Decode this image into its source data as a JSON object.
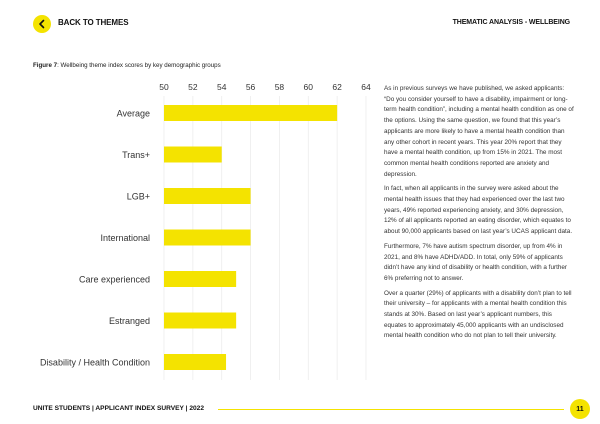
{
  "header": {
    "back_label": "BACK TO THEMES",
    "section_title": "THEMATIC ANALYSIS - WELLBEING"
  },
  "figure": {
    "number": "Figure 7",
    "caption": ": Wellbeing theme index scores by key demographic groups"
  },
  "chart_data": {
    "type": "bar",
    "orientation": "horizontal",
    "categories": [
      "Average",
      "Trans+",
      "LGB+",
      "International",
      "Care experienced",
      "Estranged",
      "Disability / Health Condition"
    ],
    "values": [
      62,
      54,
      56,
      56,
      55,
      55,
      54.3
    ],
    "xlim": [
      50,
      64
    ],
    "xticks": [
      "50",
      "52",
      "54",
      "56",
      "58",
      "60",
      "62",
      "64"
    ],
    "xtick_values": [
      50,
      52,
      54,
      56,
      58,
      60,
      62,
      64
    ],
    "bar_color": "#f4e300",
    "grid": true
  },
  "body": {
    "paragraphs": [
      "As in previous surveys we have published, we asked applicants: “Do you consider yourself to have a disability, impairment or long-term health condition”, including a mental health condition as one of the options. Using the same question, we found that this year’s applicants are more likely to have a mental health condition than any other cohort in recent years. This year 20% report that they have a mental health condition, up from 15% in 2021. The most common mental health conditions reported are anxiety and depression.",
      "In fact, when all applicants in the survey were asked about the mental health issues that they had experienced over the last two years, 49% reported experiencing anxiety, and 30% depression, 12% of all applicants reported an eating disorder, which equates to about 90,000 applicants based on last year’s UCAS applicant data.",
      "Furthermore, 7% have autism spectrum disorder, up from 4% in 2021, and 8% have ADHD/ADD. In total, only 59% of applicants didn’t have any kind of disability or health condition, with a further 6% preferring not to answer.",
      "Over a quarter (29%) of applicants with a disability don’t plan to tell their university – for applicants with a mental health condition this stands at 30%. Based on last year’s applicant numbers, this equates to approximately 45,000 applicants with an undisclosed mental health condition who do not plan to tell their university."
    ]
  },
  "footer": {
    "text": "UNITE STUDENTS | APPLICANT INDEX SURVEY | 2022",
    "page": "11"
  }
}
